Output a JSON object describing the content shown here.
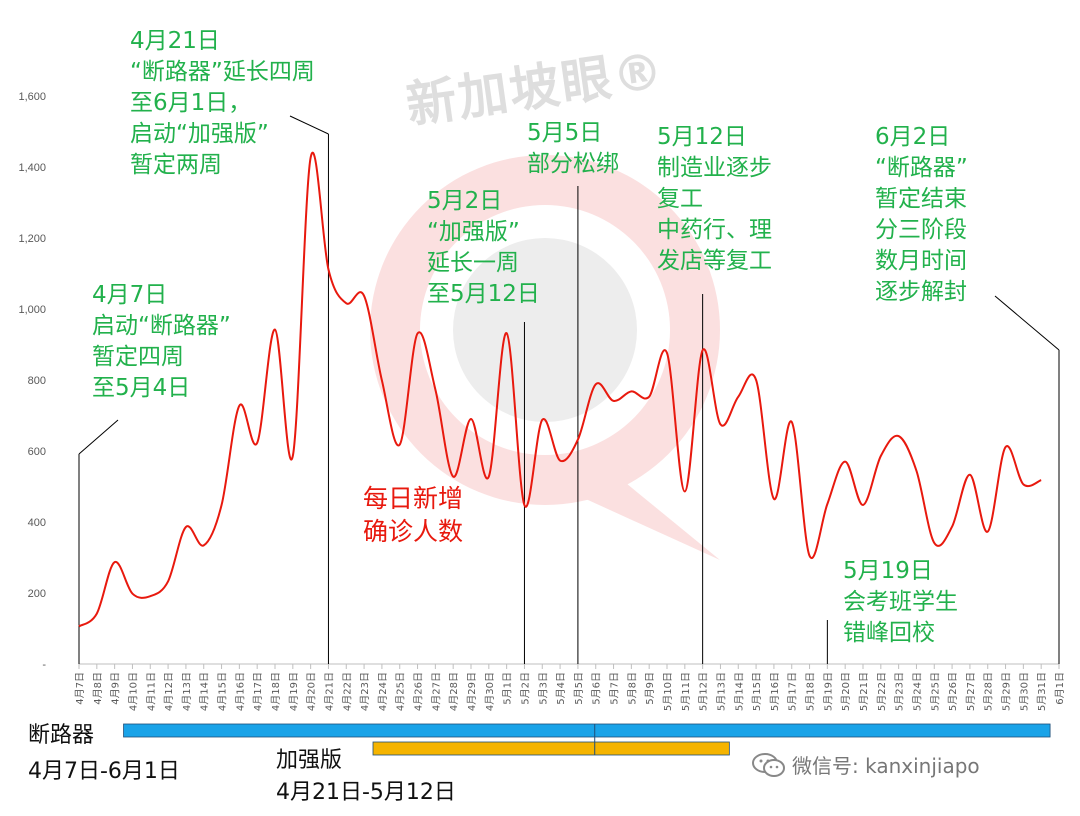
{
  "chart_data": {
    "type": "line",
    "series": [
      {
        "color": "#e8190e",
        "x": [
          "4月7日",
          "4月8日",
          "4月9日",
          "4月10日",
          "4月11日",
          "4月12日",
          "4月13日",
          "4月14日",
          "4月15日",
          "4月16日",
          "4月17日",
          "4月18日",
          "4月19日",
          "4月20日",
          "4月21日",
          "4月22日",
          "4月23日",
          "4月24日",
          "4月25日",
          "4月26日",
          "4月27日",
          "4月28日",
          "4月29日",
          "4月30日",
          "5月1日",
          "5月2日",
          "5月3日",
          "5月4日",
          "5月5日",
          "5月6日",
          "5月7日",
          "5月8日",
          "5月9日",
          "5月10日",
          "5月11日",
          "5月12日",
          "5月13日",
          "5月14日",
          "5月15日",
          "5月16日",
          "5月17日",
          "5月18日",
          "5月19日",
          "5月20日",
          "5月21日",
          "5月22日",
          "5月23日",
          "5月24日",
          "5月25日",
          "5月26日",
          "5月27日",
          "5月28日",
          "5月29日",
          "5月30日",
          "5月31日"
        ],
        "values": [
          106,
          142,
          287,
          198,
          191,
          233,
          386,
          334,
          447,
          728,
          623,
          942,
          586,
          1426,
          1111,
          1016,
          1037,
          799,
          618,
          931,
          773,
          528,
          690,
          528,
          932,
          447,
          688,
          573,
          632,
          788,
          741,
          768,
          753,
          876,
          486,
          884,
          675,
          753,
          800,
          465,
          682,
          305,
          451,
          570,
          448,
          586,
          642,
          544,
          341,
          387,
          533,
          373,
          611,
          506,
          518
        ]
      }
    ],
    "categories": [
      "4月7日",
      "4月8日",
      "4月9日",
      "4月10日",
      "4月11日",
      "4月12日",
      "4月13日",
      "4月14日",
      "4月15日",
      "4月16日",
      "4月17日",
      "4月18日",
      "4月19日",
      "4月20日",
      "4月21日",
      "4月22日",
      "4月23日",
      "4月24日",
      "4月25日",
      "4月26日",
      "4月27日",
      "4月28日",
      "4月29日",
      "4月30日",
      "5月1日",
      "5月2日",
      "5月3日",
      "5月4日",
      "5月5日",
      "5月6日",
      "5月7日",
      "5月8日",
      "5月9日",
      "5月10日",
      "5月11日",
      "5月12日",
      "5月13日",
      "5月14日",
      "5月15日",
      "5月16日",
      "5月17日",
      "5月18日",
      "5月19日",
      "5月20日",
      "5月21日",
      "5月22日",
      "5月23日",
      "5月24日",
      "5月25日",
      "5月26日",
      "5月27日",
      "5月28日",
      "5月29日",
      "5月30日",
      "5月31日",
      "6月1日"
    ],
    "y_ticks": [
      "-",
      "200",
      "400",
      "600",
      "800",
      "1,000",
      "1,200",
      "1,400",
      "1,600"
    ],
    "ylim": [
      0,
      1600
    ],
    "grid": false,
    "annotations": [
      {
        "text": "4月21日\n“断路器”延长四周\n至6月1日，\n启动“加强版”\n暂定两周",
        "color": "#22b14c",
        "at": "4月21日"
      },
      {
        "text": "4月7日\n启动“断路器”\n暂定四周\n至5月4日",
        "color": "#22b14c",
        "at": "4月7日"
      },
      {
        "text": "5月2日\n“加强版”\n延长一周\n至5月12日",
        "color": "#22b14c",
        "at": "5月2日"
      },
      {
        "text": "5月5日\n部分松绑",
        "color": "#22b14c",
        "at": "5月5日"
      },
      {
        "text": "5月12日\n制造业逐步\n复工\n中药行、理\n发店等复工",
        "color": "#22b14c",
        "at": "5月12日"
      },
      {
        "text": "6月2日\n“断路器”\n暂定结束\n分三阶段\n数月时间\n逐步解封",
        "color": "#22b14c",
        "at": "6月1日"
      },
      {
        "text": "5月19日\n会考班学生\n错峰回校",
        "color": "#22b14c",
        "at": "5月19日"
      },
      {
        "text": "每日新增\n确诊人数",
        "color": "#e8190e"
      }
    ],
    "ranges": [
      {
        "name": "断路器",
        "period": "4月7日-6月1日",
        "color": "#1aa3e8",
        "from": "4月10日",
        "to": "5月31日"
      },
      {
        "name": "加强版",
        "period": "4月21日-5月12日",
        "color": "#f5b400",
        "from": "4月24日",
        "to": "5月13日"
      }
    ]
  },
  "watermark": "新加坡眼®",
  "wechat_label": "微信号: kanxinjiapo",
  "labels": {
    "cb_name": "断路器",
    "cb_period": "4月7日-6月1日",
    "enh_name": "加强版",
    "enh_period": "4月21日-5月12日",
    "ann_apr21": "4月21日\n“断路器”延长四周\n至6月1日，\n启动“加强版”\n暂定两周",
    "ann_apr7": "4月7日\n启动“断路器”\n暂定四周\n至5月4日",
    "ann_may2": "5月2日\n“加强版”\n延长一周\n至5月12日",
    "ann_may5": "5月5日\n部分松绑",
    "ann_may12": "5月12日\n制造业逐步\n复工\n中药行、理\n发店等复工",
    "ann_jun2": "6月2日\n“断路器”\n暂定结束\n分三阶段\n数月时间\n逐步解封",
    "ann_may19": "5月19日\n会考班学生\n错峰回校",
    "red_label": "每日新增\n确诊人数"
  }
}
